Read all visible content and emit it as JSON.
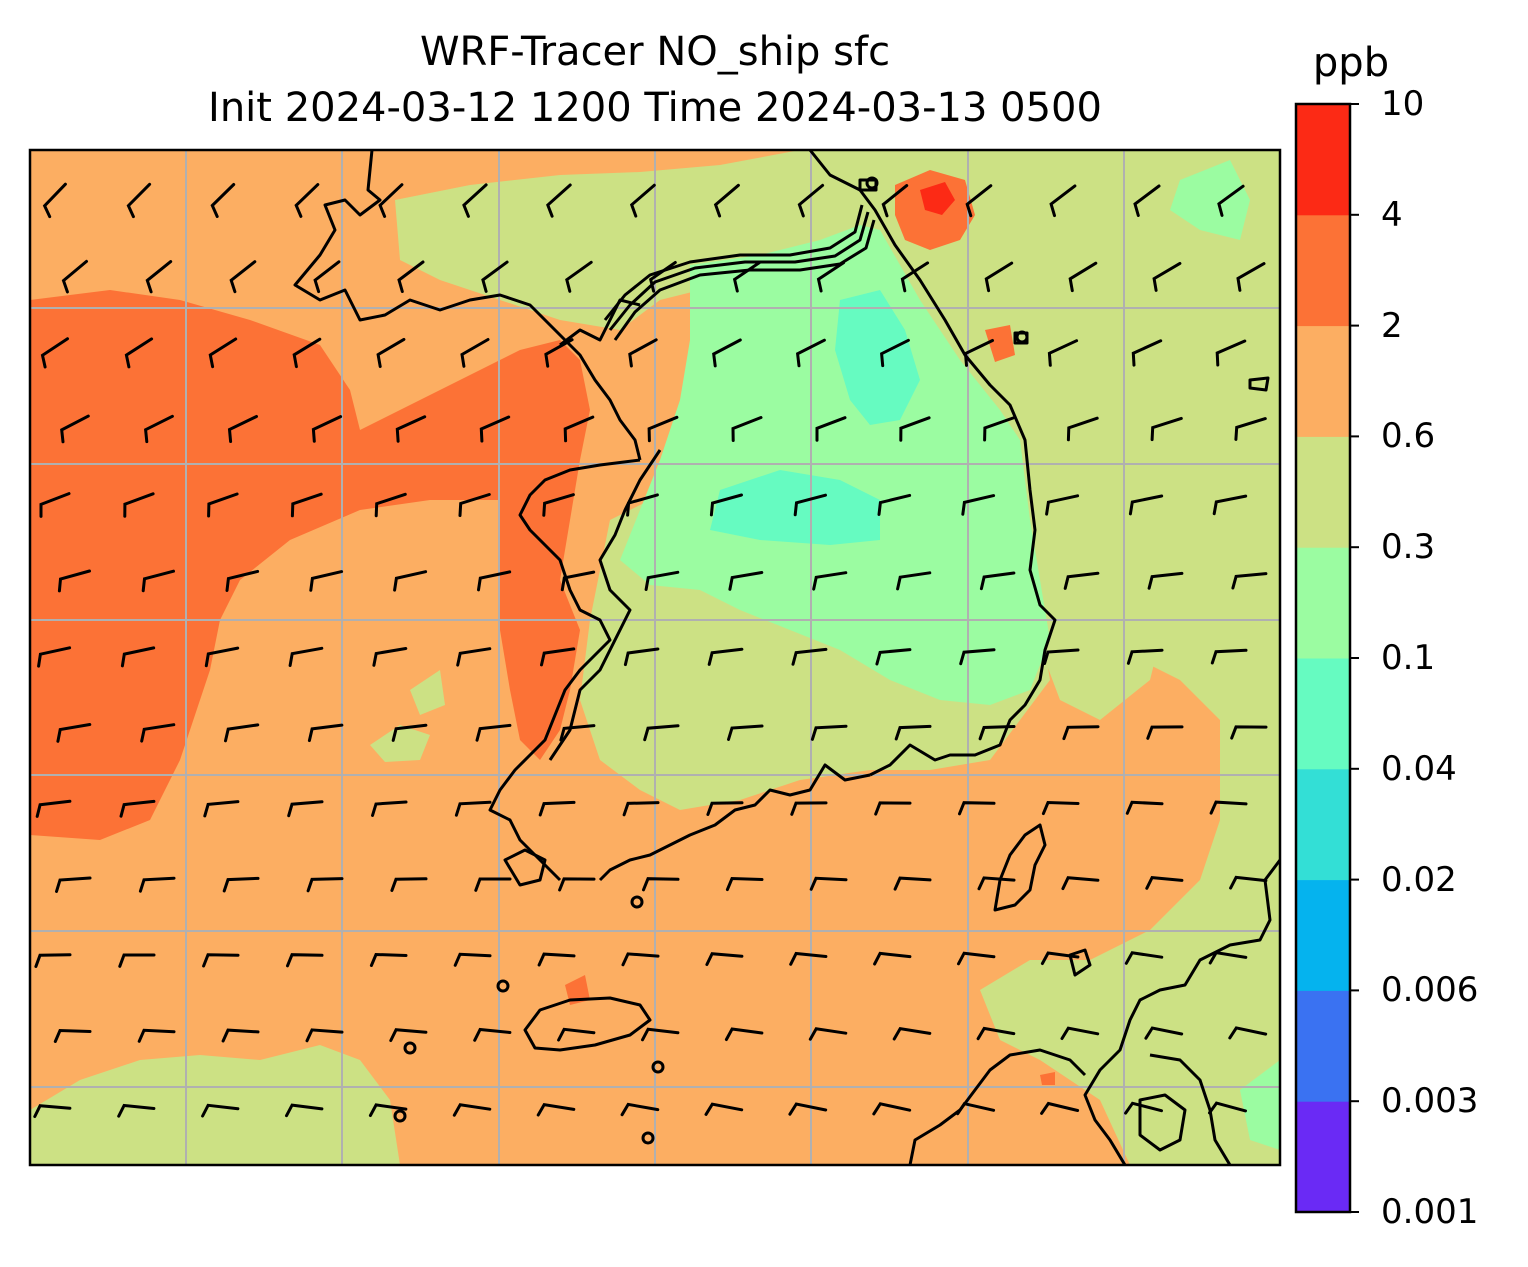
{
  "title_line1": "WRF-Tracer NO_ship sfc",
  "title_line2": "Init 2024-03-12 1200 Time 2024-03-13 0500",
  "colorbar": {
    "unit": "ppb",
    "levels": [
      "0.001",
      "0.003",
      "0.006",
      "0.02",
      "0.04",
      "0.1",
      "0.3",
      "0.6",
      "2",
      "4",
      "10"
    ],
    "colors": [
      "#6a2af5",
      "#3a72f2",
      "#05b3ee",
      "#33dfd6",
      "#66fbc1",
      "#9bfca1",
      "#cce184",
      "#fcae62",
      "#fc7236",
      "#fc2a15"
    ]
  },
  "map": {
    "frame_color": "#000000",
    "grid_color": "#b0b0b0",
    "coastline_color": "#000000"
  }
}
